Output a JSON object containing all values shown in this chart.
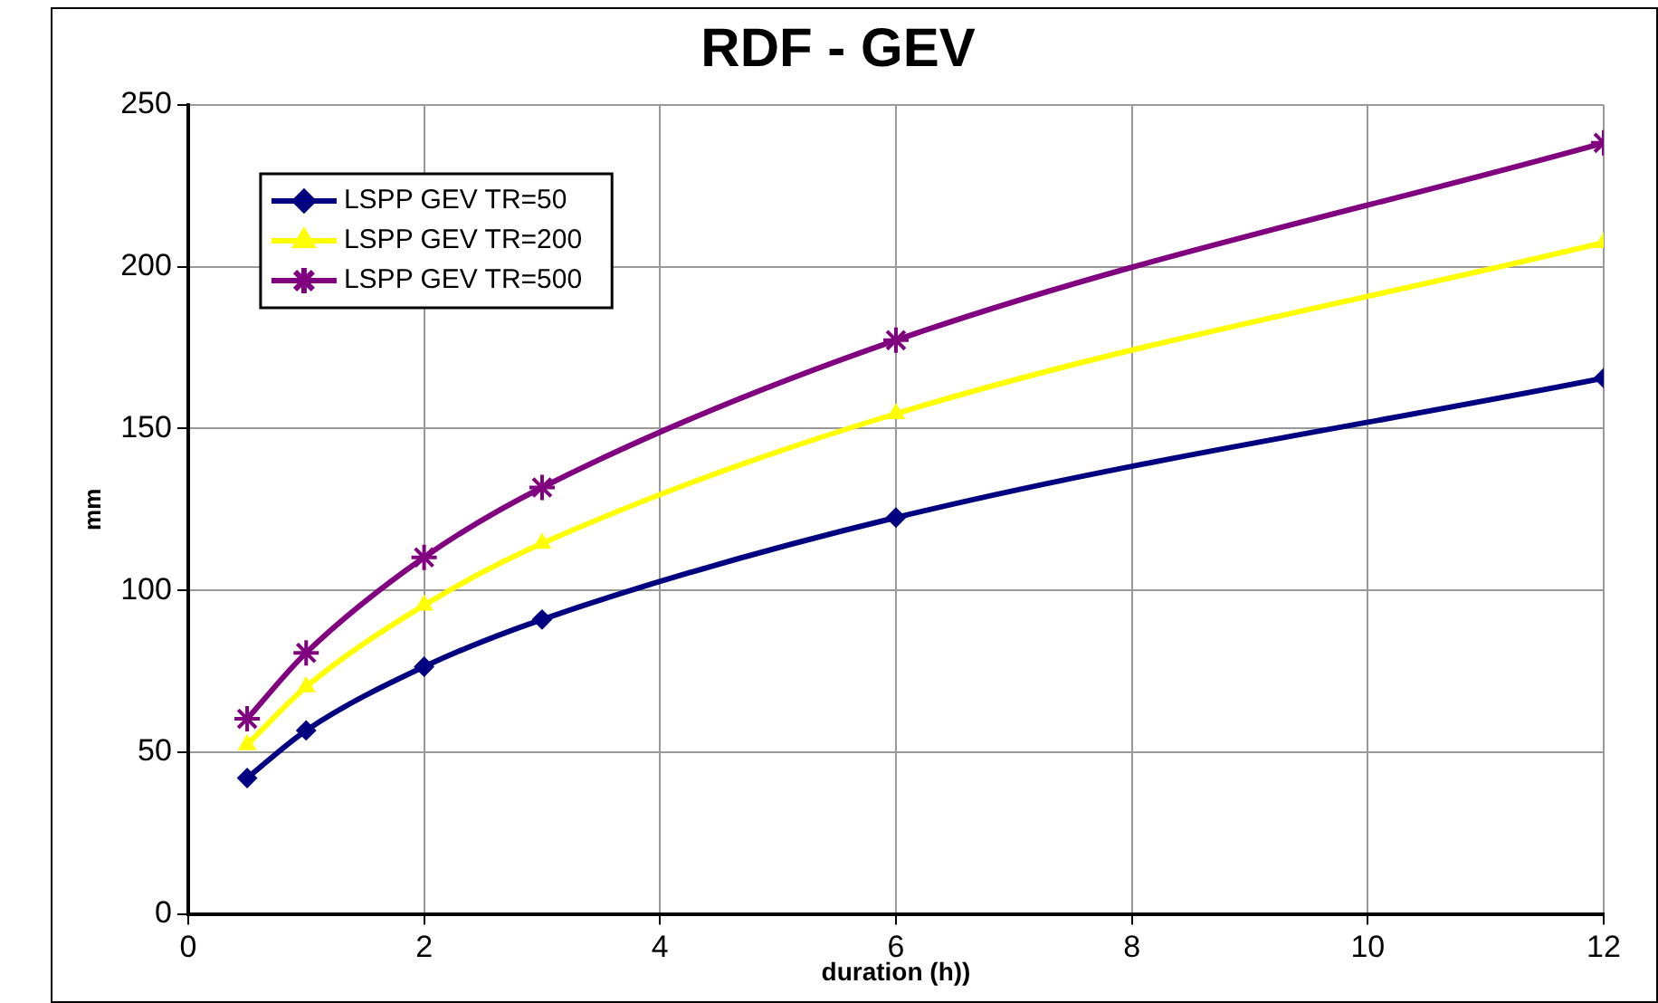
{
  "chart_data": {
    "type": "line",
    "title": "RDF - GEV",
    "xlabel": "duration (h))",
    "ylabel": "mm",
    "xlim": [
      0,
      12
    ],
    "xticks": [
      0,
      2,
      4,
      6,
      8,
      10,
      12
    ],
    "ylim": [
      0,
      250
    ],
    "yticks": [
      0,
      50,
      100,
      150,
      200,
      250
    ],
    "grid": true,
    "legend": "top left",
    "line_style": "solid",
    "x": [
      0.5,
      1,
      2,
      3,
      6,
      12
    ],
    "series": [
      {
        "name": "LSPP GEV TR=50",
        "color": "#000080",
        "marker": "diamond",
        "values": [
          42,
          56.7,
          76.4,
          91,
          122.5,
          165.6
        ]
      },
      {
        "name": "LSPP GEV TR=200",
        "color": "#ffff00",
        "marker": "triangle",
        "values": [
          52.3,
          70.2,
          95.4,
          114.5,
          154.6,
          207.5
        ]
      },
      {
        "name": "LSPP GEV TR=500",
        "color": "#800080",
        "marker": "cross",
        "values": [
          60.3,
          80.7,
          110.2,
          131.8,
          177.3,
          238.3
        ]
      }
    ]
  }
}
